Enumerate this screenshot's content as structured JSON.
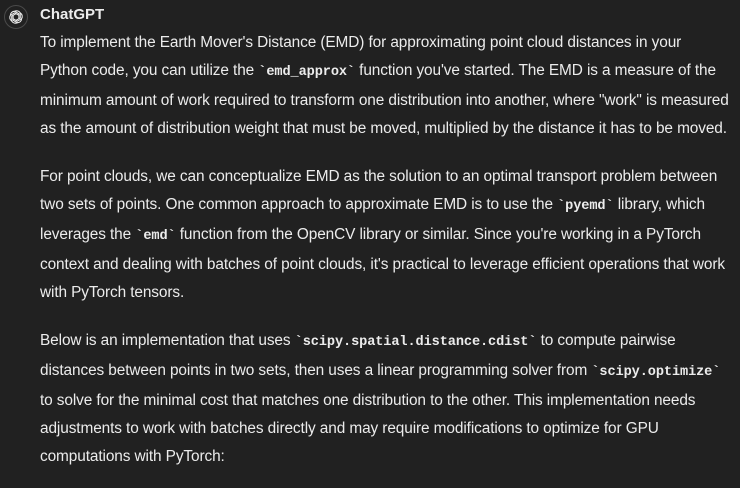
{
  "author": "ChatGPT",
  "icons": {
    "avatar": "openai-logo-icon"
  },
  "colors": {
    "background": "#212121",
    "text": "#ececec"
  },
  "paragraphs": [
    {
      "t1": "To implement the Earth Mover's Distance (EMD) for approximating point cloud distances in your Python code, you can utilize the ",
      "c1": "`emd_approx`",
      "t2": " function you've started. The EMD is a measure of the minimum amount of work required to transform one distribution into another, where \"work\" is measured as the amount of distribution weight that must be moved, multiplied by the distance it has to be moved."
    },
    {
      "t1": "For point clouds, we can conceptualize EMD as the solution to an optimal transport problem between two sets of points. One common approach to approximate EMD is to use the ",
      "c1": "`pyemd`",
      "t2": " library, which leverages the ",
      "c2": "`emd`",
      "t3": " function from the OpenCV library or similar. Since you're working in a PyTorch context and dealing with batches of point clouds, it's practical to leverage efficient operations that work with PyTorch tensors."
    },
    {
      "t1": "Below is an implementation that uses ",
      "c1": "`scipy.spatial.distance.cdist`",
      "t2": " to compute pairwise distances between points in two sets, then uses a linear programming solver from ",
      "c2": "`scipy.optimize`",
      "t3": " to solve for the minimal cost that matches one distribution to the other. This implementation needs adjustments to work with batches directly and may require modifications to optimize for GPU computations with PyTorch:"
    }
  ]
}
